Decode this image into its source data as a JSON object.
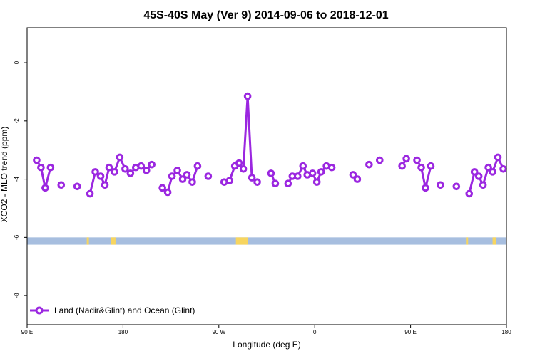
{
  "chart_data": {
    "type": "line",
    "title": "45S-40S May (Ver 9)   2014-09-06 to 2018-12-01",
    "xlabel": "Longitude (deg E)",
    "ylabel": "XCO2 - MLO trend (ppm)",
    "xlim": [
      90,
      540
    ],
    "ylim": [
      -9,
      1.2
    ],
    "x_ticks": [
      {
        "value": 90,
        "label": "90 E"
      },
      {
        "value": 180,
        "label": "180"
      },
      {
        "value": 270,
        "label": "90 W"
      },
      {
        "value": 360,
        "label": "0"
      },
      {
        "value": 450,
        "label": "90 E"
      },
      {
        "value": 540,
        "label": "180"
      }
    ],
    "y_ticks": [
      {
        "value": 0,
        "label": "0"
      },
      {
        "value": -2,
        "label": "-2"
      },
      {
        "value": -4,
        "label": "-4"
      },
      {
        "value": -6,
        "label": "-6"
      },
      {
        "value": -8,
        "label": "-8"
      }
    ],
    "grid": false,
    "legend_position": "bottom-left",
    "series": [
      {
        "name": "Land (Nadir&Glint) and Ocean (Glint)",
        "color": "#9b27e0",
        "points": [
          [
            99,
            -3.35
          ],
          [
            103,
            -3.6
          ],
          [
            107,
            -4.3
          ],
          [
            112,
            -3.6
          ],
          [
            122,
            -4.2
          ],
          [
            137,
            -4.25
          ],
          [
            149,
            -4.5
          ],
          [
            154,
            -3.75
          ],
          [
            159,
            -3.9
          ],
          [
            163,
            -4.2
          ],
          [
            167,
            -3.6
          ],
          [
            172,
            -3.75
          ],
          [
            177,
            -3.25
          ],
          [
            182,
            -3.65
          ],
          [
            187,
            -3.8
          ],
          [
            192,
            -3.6
          ],
          [
            197,
            -3.55
          ],
          [
            202,
            -3.7
          ],
          [
            207,
            -3.5
          ],
          [
            217,
            -4.3
          ],
          [
            222,
            -4.45
          ],
          [
            226,
            -3.9
          ],
          [
            231,
            -3.7
          ],
          [
            236,
            -4.0
          ],
          [
            240,
            -3.85
          ],
          [
            245,
            -4.1
          ],
          [
            250,
            -3.55
          ],
          [
            260,
            -3.9
          ],
          [
            275,
            -4.1
          ],
          [
            280,
            -4.05
          ],
          [
            285,
            -3.55
          ],
          [
            289,
            -3.45
          ],
          [
            293,
            -3.65
          ],
          [
            297,
            -1.15
          ],
          [
            301,
            -3.95
          ],
          [
            306,
            -4.1
          ],
          [
            319,
            -3.8
          ],
          [
            323,
            -4.15
          ],
          [
            335,
            -4.15
          ],
          [
            339,
            -3.9
          ],
          [
            344,
            -3.9
          ],
          [
            349,
            -3.55
          ],
          [
            353,
            -3.85
          ],
          [
            358,
            -3.8
          ],
          [
            362,
            -4.1
          ],
          [
            366,
            -3.75
          ],
          [
            371,
            -3.55
          ],
          [
            376,
            -3.6
          ],
          [
            396,
            -3.85
          ],
          [
            400,
            -4.0
          ],
          [
            411,
            -3.5
          ],
          [
            421,
            -3.35
          ],
          [
            442,
            -3.55
          ],
          [
            446,
            -3.3
          ],
          [
            456,
            -3.35
          ],
          [
            460,
            -3.6
          ],
          [
            464,
            -4.3
          ],
          [
            469,
            -3.55
          ],
          [
            478,
            -4.2
          ],
          [
            493,
            -4.25
          ],
          [
            505,
            -4.5
          ],
          [
            510,
            -3.75
          ],
          [
            514,
            -3.9
          ],
          [
            518,
            -4.2
          ],
          [
            523,
            -3.6
          ],
          [
            527,
            -3.75
          ],
          [
            532,
            -3.25
          ],
          [
            537,
            -3.65
          ]
        ]
      }
    ],
    "surface_band": {
      "y_range": [
        -6.0,
        -6.25
      ],
      "ocean_color": "#a7bedf",
      "land_color": "#f7d55f",
      "land_x": [
        [
          146,
          148
        ],
        [
          169,
          173
        ],
        [
          286,
          297
        ],
        [
          502,
          504
        ],
        [
          527,
          530
        ]
      ]
    }
  }
}
